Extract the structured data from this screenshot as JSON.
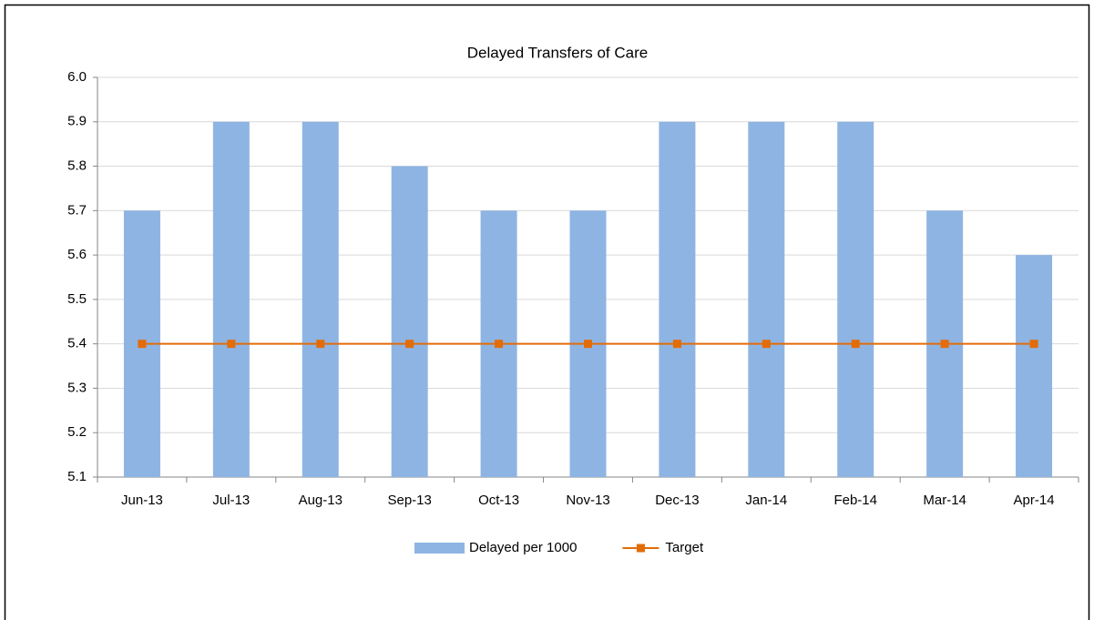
{
  "chart_data": {
    "type": "bar_line",
    "title": "Delayed Transfers of Care",
    "categories": [
      "Jun-13",
      "Jul-13",
      "Aug-13",
      "Sep-13",
      "Oct-13",
      "Nov-13",
      "Dec-13",
      "Jan-14",
      "Feb-14",
      "Mar-14",
      "Apr-14"
    ],
    "series": [
      {
        "name": "Delayed per 1000",
        "type": "bar",
        "color": "#8eb4e3",
        "values": [
          5.7,
          5.9,
          5.9,
          5.8,
          5.7,
          5.7,
          5.9,
          5.9,
          5.9,
          5.7,
          5.6
        ]
      },
      {
        "name": "Target",
        "type": "line",
        "color": "#e36c09",
        "values": [
          5.4,
          5.4,
          5.4,
          5.4,
          5.4,
          5.4,
          5.4,
          5.4,
          5.4,
          5.4,
          5.4
        ]
      }
    ],
    "ylim": [
      5.1,
      6.0
    ],
    "yticks": [
      5.1,
      5.2,
      5.3,
      5.4,
      5.5,
      5.6,
      5.7,
      5.8,
      5.9,
      {
        "value": 6,
        "label": "6.0"
      }
    ],
    "grid": true,
    "legend": "bottom"
  }
}
